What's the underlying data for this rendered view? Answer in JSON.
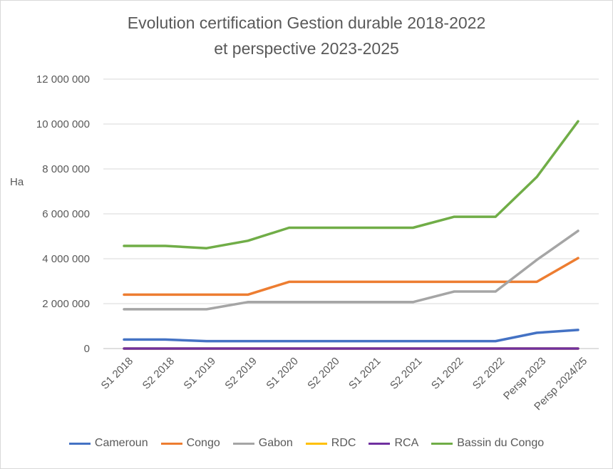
{
  "chart_data": {
    "type": "line",
    "title_line1": "Evolution certification Gestion durable 2018-2022",
    "title_line2": "et perspective 2023-2025",
    "ylabel": "Ha",
    "ylim": [
      0,
      12000000
    ],
    "yticks": [
      0,
      2000000,
      4000000,
      6000000,
      8000000,
      10000000,
      12000000
    ],
    "ytick_labels": [
      "0",
      "2 000 000",
      "4 000 000",
      "6 000 000",
      "8 000 000",
      "10 000 000",
      "12 000 000"
    ],
    "grid": true,
    "legend_position": "bottom",
    "categories": [
      "S1 2018",
      "S2 2018",
      "S1 2019",
      "S2 2019",
      "S1 2020",
      "S2 2020",
      "S1 2021",
      "S2 2021",
      "S1 2022",
      "S2 2022",
      "Persp 2023",
      "Persp 2024/25"
    ],
    "series": [
      {
        "name": "Cameroun",
        "color": "#4472c4",
        "values": [
          400000,
          400000,
          330000,
          330000,
          330000,
          330000,
          330000,
          330000,
          330000,
          330000,
          700000,
          830000
        ]
      },
      {
        "name": "Congo",
        "color": "#ed7d31",
        "values": [
          2400000,
          2400000,
          2400000,
          2400000,
          2970000,
          2970000,
          2970000,
          2970000,
          2970000,
          2970000,
          2970000,
          4030000
        ]
      },
      {
        "name": "Gabon",
        "color": "#a5a5a5",
        "values": [
          1750000,
          1750000,
          1750000,
          2070000,
          2070000,
          2070000,
          2070000,
          2070000,
          2540000,
          2540000,
          3950000,
          5240000
        ]
      },
      {
        "name": "RDC",
        "color": "#ffc000",
        "values": [
          0,
          0,
          0,
          0,
          0,
          0,
          0,
          0,
          0,
          0,
          0,
          0
        ]
      },
      {
        "name": "RCA",
        "color": "#7030a0",
        "values": [
          0,
          0,
          0,
          0,
          0,
          0,
          0,
          0,
          0,
          0,
          0,
          0
        ]
      },
      {
        "name": "Bassin du Congo",
        "color": "#70ad47",
        "values": [
          4570000,
          4570000,
          4470000,
          4800000,
          5380000,
          5380000,
          5380000,
          5380000,
          5870000,
          5870000,
          7640000,
          10120000
        ]
      }
    ]
  }
}
